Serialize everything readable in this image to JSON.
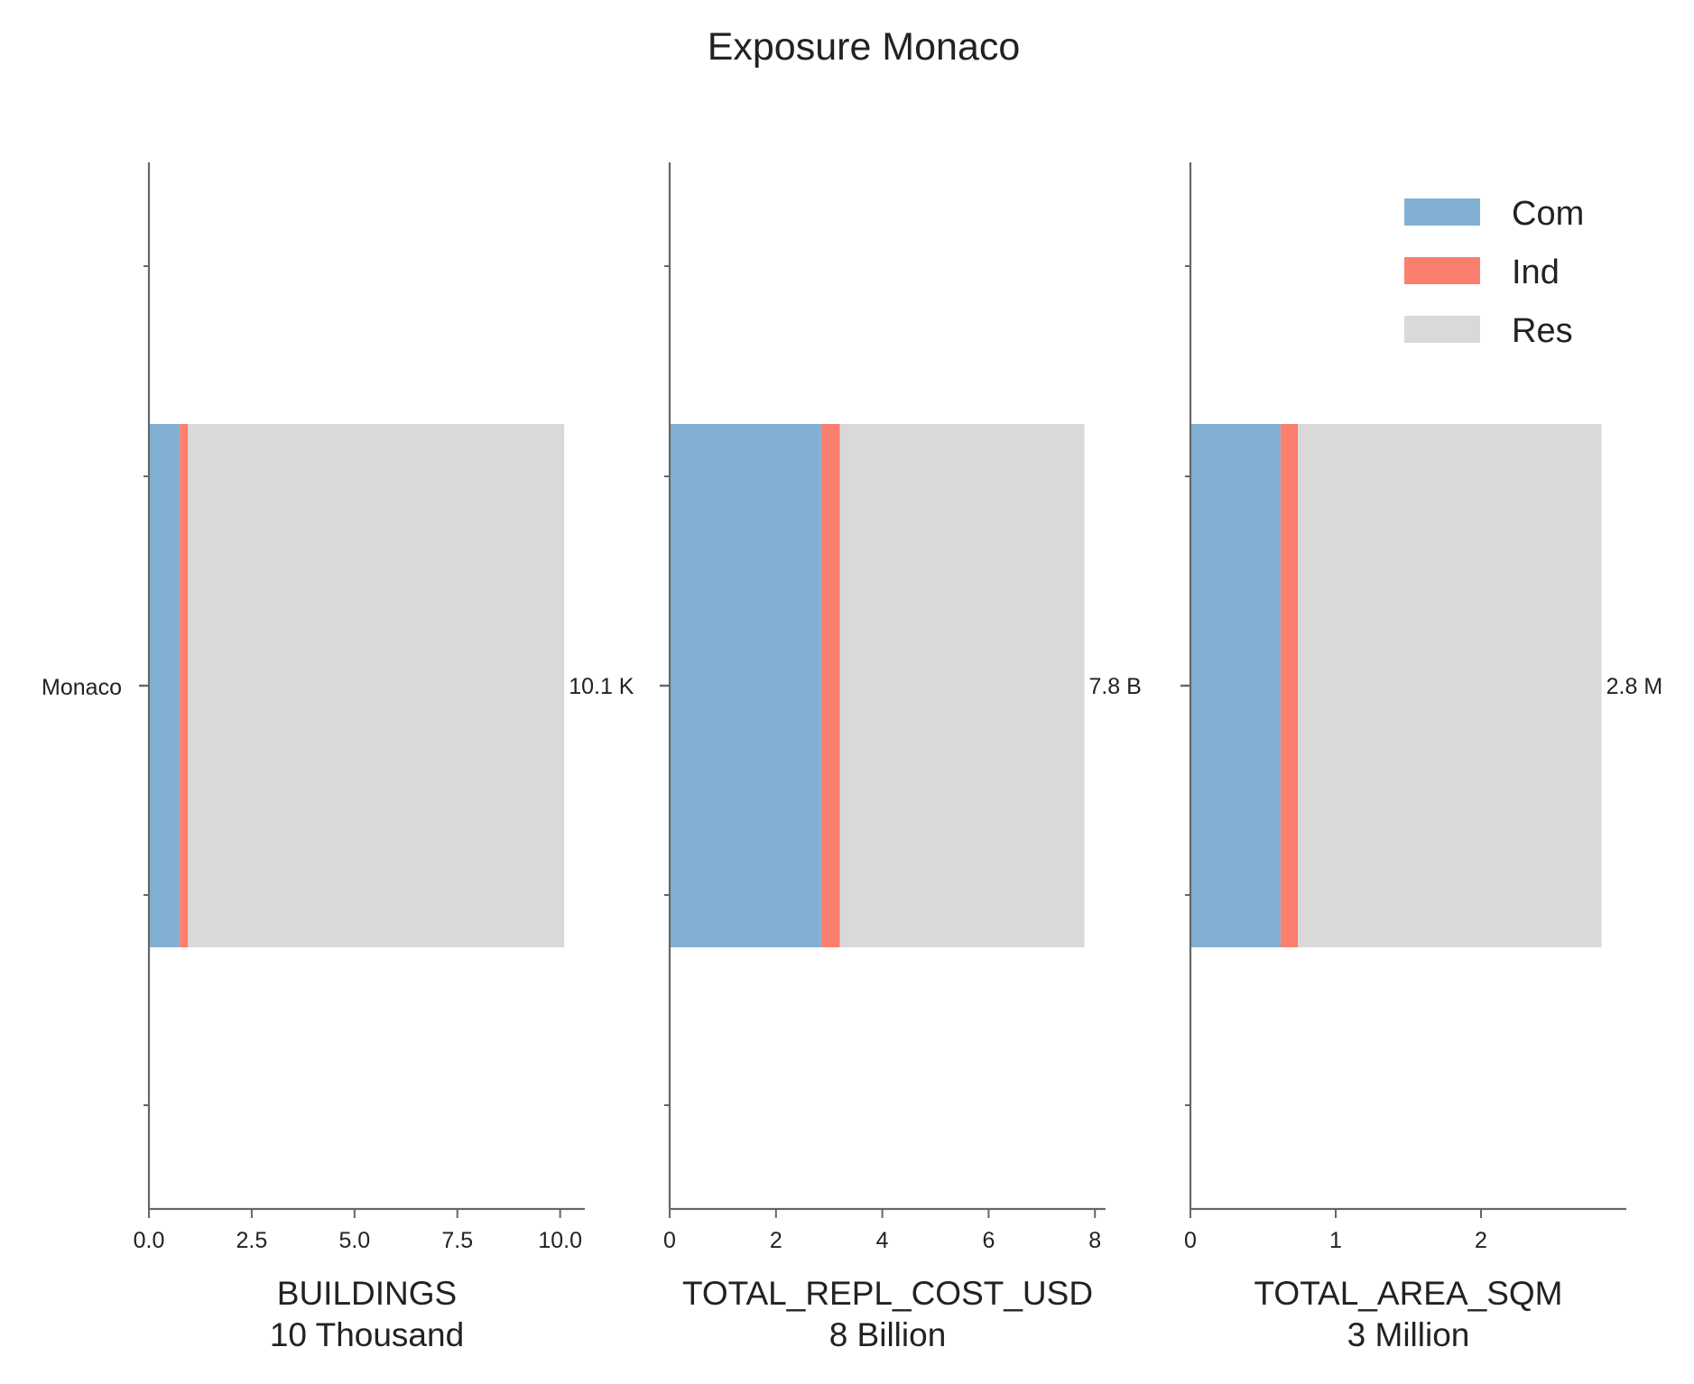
{
  "title": "Exposure Monaco",
  "category": "Monaco",
  "legend": {
    "placement": "top-right",
    "entries": [
      {
        "name": "Com",
        "color": "#82b0d2"
      },
      {
        "name": "Ind",
        "color": "#fa7f6f"
      },
      {
        "name": "Res",
        "color": "#d9d9d9"
      }
    ]
  },
  "chart_data": [
    {
      "type": "bar",
      "orientation": "horizontal",
      "stacked": true,
      "categories": [
        "Monaco"
      ],
      "series": [
        {
          "name": "Com",
          "values": [
            0.75
          ]
        },
        {
          "name": "Ind",
          "values": [
            0.2
          ]
        },
        {
          "name": "Res",
          "values": [
            9.15
          ]
        }
      ],
      "total_label": "10.1 K",
      "xlabel": "BUILDINGS",
      "xlabel_sub": "10 Thousand",
      "xlim": [
        0,
        10.6
      ],
      "xticks": [
        0,
        2.5,
        5,
        7.5,
        10
      ],
      "xtick_labels": [
        "0.0",
        "2.5",
        "5.0",
        "7.5",
        "10.0"
      ]
    },
    {
      "type": "bar",
      "orientation": "horizontal",
      "stacked": true,
      "categories": [
        "Monaco"
      ],
      "series": [
        {
          "name": "Com",
          "values": [
            2.85
          ]
        },
        {
          "name": "Ind",
          "values": [
            0.35
          ]
        },
        {
          "name": "Res",
          "values": [
            4.6
          ]
        }
      ],
      "total_label": "7.8 B",
      "xlabel": "TOTAL_REPL_COST_USD",
      "xlabel_sub": "8 Billion",
      "xlim": [
        0,
        8.2
      ],
      "xticks": [
        0,
        2,
        4,
        6,
        8
      ],
      "xtick_labels": [
        "0",
        "2",
        "4",
        "6",
        "8"
      ]
    },
    {
      "type": "bar",
      "orientation": "horizontal",
      "stacked": true,
      "categories": [
        "Monaco"
      ],
      "series": [
        {
          "name": "Com",
          "values": [
            0.62
          ]
        },
        {
          "name": "Ind",
          "values": [
            0.12
          ]
        },
        {
          "name": "Res",
          "values": [
            2.09
          ]
        }
      ],
      "total_label": "2.8 M",
      "xlabel": "TOTAL_AREA_SQM",
      "xlabel_sub": "3 Million",
      "xlim": [
        0,
        3.0
      ],
      "xticks": [
        0,
        1,
        2
      ],
      "xtick_labels": [
        "0",
        "1",
        "2"
      ]
    }
  ]
}
